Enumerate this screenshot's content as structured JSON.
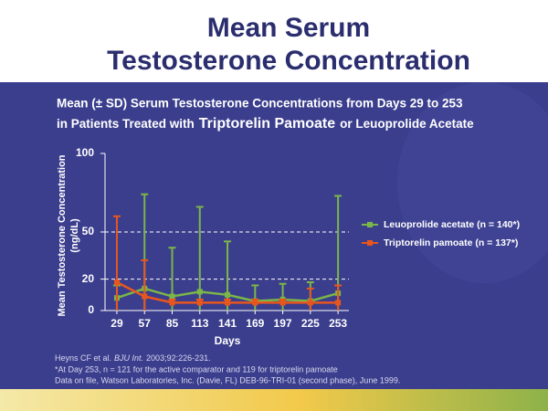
{
  "slide": {
    "title_lines": [
      "Mean Serum",
      "Testosterone Concentration"
    ]
  },
  "chart_data": {
    "type": "line",
    "subtitle_line1": "Mean (± SD) Serum Testosterone Concentrations from Days 29 to 253",
    "subtitle_line2": [
      "in Patients Treated with",
      "Triptorelin Pamoate",
      "or Leuoprolide Acetate"
    ],
    "x_label": "Days",
    "y_label": [
      "Mean Testosterone Concentration",
      "(ng/dL)"
    ],
    "x": [
      29,
      57,
      85,
      113,
      141,
      169,
      197,
      225,
      253
    ],
    "xlim": [
      17,
      264
    ],
    "xticks": [
      29,
      57,
      85,
      113,
      141,
      169,
      197,
      225,
      253
    ],
    "ylim": [
      0,
      100
    ],
    "yticks": [
      0,
      20,
      50,
      100
    ],
    "reference_lines": [
      20,
      50
    ],
    "series": [
      {
        "name": "Leuoprolide acetate (n = 140*)",
        "color": "#7ab648",
        "values": [
          8,
          14,
          9,
          12,
          10,
          6,
          7,
          6,
          11
        ],
        "errors": [
          8,
          60,
          31,
          54,
          34,
          10,
          10,
          12,
          62
        ]
      },
      {
        "name": "Triptorelin pamoate (n = 137*)",
        "color": "#e8561e",
        "values": [
          18,
          9,
          5,
          5,
          5,
          5,
          5,
          5,
          5
        ],
        "errors": [
          42,
          23,
          2,
          2,
          2,
          2,
          2,
          9,
          11
        ]
      }
    ]
  },
  "footnotes": {
    "citation": [
      "Heyns CF et al.",
      "BJU Int.",
      "2003;92:226-231."
    ],
    "lines": [
      "*At Day 253, n = 121 for the active comparator and 119 for triptorelin pamoate",
      "Data on file, Watson Laboratories, Inc. (Davie, FL) DEB-96-TRI-01 (second phase), June 1999."
    ]
  }
}
